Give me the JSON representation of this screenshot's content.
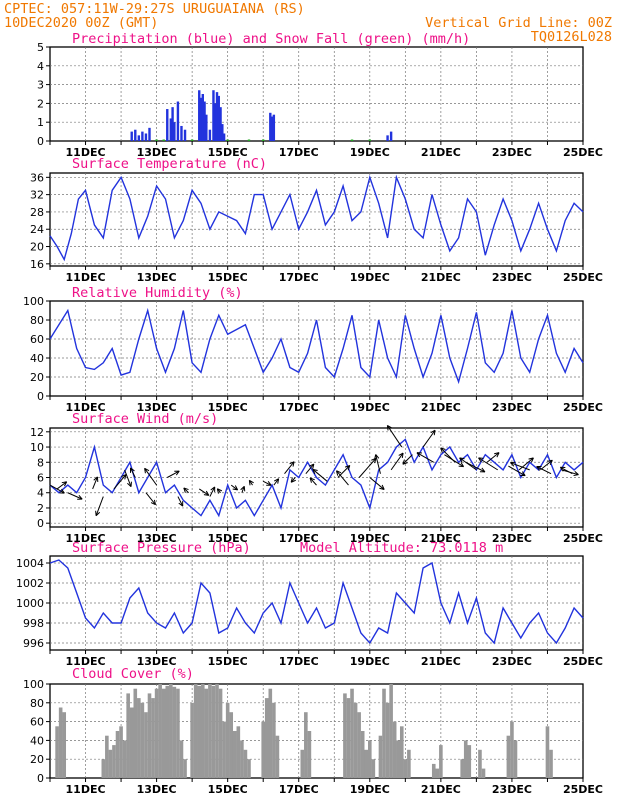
{
  "header": {
    "left1": "CPTEC:  057:11W-29:27S  URUGUAIANA (RS)",
    "left2": "10DEC2020 00Z (GMT)",
    "right1": "Vertical Grid Line: 00Z",
    "right2": "TQ0126L028"
  },
  "x_labels": [
    "11DEC",
    "13DEC",
    "15DEC",
    "17DEC",
    "19DEC",
    "21DEC",
    "23DEC",
    "25DEC"
  ],
  "colors": {
    "line": "#2233dd",
    "snow": "#22aa22",
    "cloud": "#999999",
    "title": "#ee1188",
    "header": "#f07800"
  },
  "chart_data": [
    {
      "type": "bar",
      "title": "Precipitation (blue) and Snow Fall (green) (mm/h)",
      "ylim": [
        0,
        5
      ],
      "yticks": [
        0,
        1,
        2,
        3,
        4,
        5
      ],
      "series": [
        {
          "name": "Precipitation",
          "color": "#2233dd",
          "x": [
            2.3,
            2.4,
            2.5,
            2.6,
            2.7,
            2.8,
            3.3,
            3.4,
            3.45,
            3.5,
            3.6,
            3.7,
            3.8,
            4.2,
            4.25,
            4.3,
            4.35,
            4.4,
            4.5,
            4.6,
            4.65,
            4.7,
            4.75,
            4.8,
            4.85,
            4.9,
            6.2,
            6.25,
            6.3,
            9.5,
            9.6
          ],
          "values": [
            0.5,
            0.6,
            0.3,
            0.5,
            0.4,
            0.7,
            1.7,
            1.2,
            1.8,
            1.0,
            2.1,
            0.8,
            0.6,
            2.7,
            2.3,
            2.5,
            2.1,
            1.4,
            0.6,
            2.7,
            2.0,
            2.6,
            2.4,
            1.8,
            0.9,
            0.4,
            1.5,
            1.3,
            1.4,
            0.3,
            0.5
          ]
        },
        {
          "name": "Snow Fall",
          "color": "#22aa22",
          "x": [
            3.0,
            3.2,
            4.0,
            5.0,
            5.6,
            6.0,
            8.5,
            9.0
          ],
          "values": [
            0.05,
            0.05,
            0.05,
            0.05,
            0.05,
            0.05,
            0.05,
            0.05
          ]
        }
      ]
    },
    {
      "type": "line",
      "title": "Surface Temperature (nC)",
      "ylim": [
        15.5,
        37
      ],
      "yticks": [
        16,
        20,
        24,
        28,
        32,
        36
      ],
      "x": [
        0,
        0.2,
        0.4,
        0.6,
        0.8,
        1.0,
        1.25,
        1.5,
        1.75,
        2.0,
        2.25,
        2.5,
        2.75,
        3.0,
        3.25,
        3.5,
        3.75,
        4.0,
        4.25,
        4.5,
        4.75,
        5.0,
        5.25,
        5.5,
        5.75,
        6.0,
        6.25,
        6.5,
        6.75,
        7.0,
        7.25,
        7.5,
        7.75,
        8.0,
        8.25,
        8.5,
        8.75,
        9.0,
        9.25,
        9.5,
        9.75,
        10.0,
        10.25,
        10.5,
        10.75,
        11.0,
        11.25,
        11.5,
        11.75,
        12.0,
        12.25,
        12.5,
        12.75,
        13.0,
        13.25,
        13.5,
        13.75,
        14.0,
        14.25,
        14.5,
        14.75,
        15.0
      ],
      "y": [
        22.5,
        20,
        17,
        23,
        31,
        33,
        25,
        22,
        33,
        36,
        31,
        22,
        27,
        34,
        31,
        22,
        26,
        33,
        30,
        24,
        28,
        27,
        26,
        23,
        32,
        32,
        24,
        28,
        32,
        24,
        28,
        33,
        25,
        28,
        34,
        26,
        28,
        36,
        30,
        22,
        36,
        31,
        24,
        22,
        32,
        25,
        19,
        22,
        31,
        28,
        18,
        25,
        31,
        26,
        19,
        24,
        30,
        24,
        19,
        26,
        30,
        28
      ]
    },
    {
      "type": "line",
      "title": "Relative Humidity (%)",
      "ylim": [
        0,
        100
      ],
      "yticks": [
        0,
        20,
        40,
        60,
        80,
        100
      ],
      "x": [
        0,
        0.25,
        0.5,
        0.75,
        1.0,
        1.25,
        1.5,
        1.75,
        2.0,
        2.25,
        2.5,
        2.75,
        3.0,
        3.25,
        3.5,
        3.75,
        4.0,
        4.25,
        4.5,
        4.75,
        5.0,
        5.25,
        5.5,
        5.75,
        6.0,
        6.25,
        6.5,
        6.75,
        7.0,
        7.25,
        7.5,
        7.75,
        8.0,
        8.25,
        8.5,
        8.75,
        9.0,
        9.25,
        9.5,
        9.75,
        10.0,
        10.25,
        10.5,
        10.75,
        11.0,
        11.25,
        11.5,
        11.75,
        12.0,
        12.25,
        12.5,
        12.75,
        13.0,
        13.25,
        13.5,
        13.75,
        14.0,
        14.25,
        14.5,
        14.75,
        15.0
      ],
      "y": [
        60,
        75,
        90,
        50,
        30,
        28,
        35,
        50,
        22,
        25,
        60,
        90,
        50,
        25,
        50,
        90,
        35,
        25,
        60,
        85,
        65,
        70,
        75,
        50,
        25,
        40,
        60,
        30,
        25,
        45,
        80,
        30,
        20,
        50,
        85,
        30,
        20,
        80,
        40,
        20,
        85,
        50,
        20,
        45,
        85,
        40,
        15,
        50,
        88,
        35,
        25,
        45,
        90,
        40,
        25,
        60,
        85,
        45,
        25,
        50,
        35
      ]
    },
    {
      "type": "line",
      "title": "Surface Wind (m/s)",
      "ylim": [
        -0.5,
        12.5
      ],
      "yticks": [
        0,
        2,
        4,
        6,
        8,
        10,
        12
      ],
      "x": [
        0,
        0.25,
        0.5,
        0.75,
        1.0,
        1.25,
        1.5,
        1.75,
        2.0,
        2.25,
        2.5,
        2.75,
        3.0,
        3.25,
        3.5,
        3.75,
        4.0,
        4.25,
        4.5,
        4.75,
        5.0,
        5.25,
        5.5,
        5.75,
        6.0,
        6.25,
        6.5,
        6.75,
        7.0,
        7.25,
        7.5,
        7.75,
        8.0,
        8.25,
        8.5,
        8.75,
        9.0,
        9.25,
        9.5,
        9.75,
        10.0,
        10.25,
        10.5,
        10.75,
        11.0,
        11.25,
        11.5,
        11.75,
        12.0,
        12.25,
        12.5,
        12.75,
        13.0,
        13.25,
        13.5,
        13.75,
        14.0,
        14.25,
        14.5,
        14.75,
        15.0
      ],
      "y": [
        5,
        4,
        5,
        4,
        6,
        10,
        5,
        4,
        6,
        8,
        4,
        6,
        8,
        4,
        5,
        3,
        2,
        1,
        3,
        1,
        5,
        2,
        3,
        1,
        3,
        5,
        2,
        7,
        6,
        8,
        6,
        5,
        7,
        9,
        6,
        5,
        2,
        7,
        8,
        10,
        11,
        8,
        10,
        7,
        9,
        10,
        8,
        9,
        7,
        9,
        8,
        7,
        9,
        6,
        8,
        7,
        9,
        6,
        8,
        7,
        8
      ]
    },
    {
      "type": "line",
      "title": "Surface Pressure (hPa)",
      "annotation": "Model Altitude: 73.0118 m",
      "ylim": [
        995.3,
        1004.7
      ],
      "yticks": [
        996,
        998,
        1000,
        1002,
        1004
      ],
      "x": [
        0,
        0.25,
        0.5,
        0.75,
        1.0,
        1.25,
        1.5,
        1.75,
        2.0,
        2.25,
        2.5,
        2.75,
        3.0,
        3.25,
        3.5,
        3.75,
        4.0,
        4.25,
        4.5,
        4.75,
        5.0,
        5.25,
        5.5,
        5.75,
        6.0,
        6.25,
        6.5,
        6.75,
        7.0,
        7.25,
        7.5,
        7.75,
        8.0,
        8.25,
        8.5,
        8.75,
        9.0,
        9.25,
        9.5,
        9.75,
        10.0,
        10.25,
        10.5,
        10.75,
        11.0,
        11.25,
        11.5,
        11.75,
        12.0,
        12.25,
        12.5,
        12.75,
        13.0,
        13.25,
        13.5,
        13.75,
        14.0,
        14.25,
        14.5,
        14.75,
        15.0
      ],
      "y": [
        1004,
        1004.3,
        1003.5,
        1001,
        998.5,
        997.5,
        999,
        998,
        998,
        1000.5,
        1001.5,
        999,
        998,
        997.5,
        999,
        997,
        998,
        1002,
        1001,
        997,
        997.5,
        999.5,
        998,
        997,
        999,
        1000,
        998,
        1002,
        1000,
        998,
        999.5,
        997.5,
        998,
        1002,
        999.5,
        997,
        996,
        997.5,
        997,
        1001,
        1000,
        999,
        1003.5,
        1004,
        1000,
        998,
        1001,
        998,
        1000.5,
        997,
        996,
        999.5,
        998,
        996.5,
        998,
        999,
        997,
        996,
        997.5,
        999.5,
        998.5
      ]
    },
    {
      "type": "bar",
      "title": "Cloud Cover (%)",
      "ylim": [
        0,
        100
      ],
      "yticks": [
        0,
        20,
        40,
        60,
        80,
        100
      ],
      "x": [
        0.2,
        0.3,
        0.4,
        1.5,
        1.6,
        1.7,
        1.8,
        1.9,
        2.0,
        2.1,
        2.2,
        2.3,
        2.4,
        2.5,
        2.6,
        2.7,
        2.8,
        2.9,
        3.0,
        3.1,
        3.2,
        3.3,
        3.4,
        3.5,
        3.6,
        3.7,
        3.8,
        4.0,
        4.1,
        4.2,
        4.3,
        4.4,
        4.5,
        4.6,
        4.7,
        4.8,
        4.9,
        5.0,
        5.1,
        5.2,
        5.3,
        5.4,
        5.5,
        5.6,
        6.0,
        6.1,
        6.2,
        6.3,
        6.4,
        7.1,
        7.2,
        7.3,
        8.3,
        8.4,
        8.5,
        8.6,
        8.7,
        8.8,
        8.9,
        9.0,
        9.1,
        9.3,
        9.4,
        9.5,
        9.6,
        9.7,
        9.8,
        9.9,
        10.0,
        10.1,
        10.8,
        10.9,
        11.0,
        11.6,
        11.7,
        11.8,
        12.1,
        12.2,
        12.9,
        13.0,
        13.1,
        14.0,
        14.1
      ],
      "values": [
        55,
        75,
        70,
        20,
        45,
        30,
        35,
        50,
        55,
        40,
        90,
        75,
        95,
        85,
        80,
        70,
        90,
        85,
        95,
        100,
        95,
        98,
        100,
        97,
        95,
        40,
        20,
        80,
        100,
        98,
        100,
        95,
        100,
        98,
        100,
        95,
        60,
        80,
        70,
        50,
        55,
        40,
        30,
        20,
        60,
        85,
        95,
        80,
        45,
        30,
        70,
        50,
        90,
        85,
        95,
        80,
        70,
        50,
        30,
        40,
        20,
        45,
        95,
        80,
        100,
        60,
        40,
        55,
        20,
        30,
        15,
        10,
        35,
        20,
        40,
        35,
        30,
        10,
        45,
        60,
        40,
        55,
        30
      ]
    }
  ],
  "wind_vectors": {
    "x": [
      0.0,
      0.2,
      0.5,
      1.2,
      1.5,
      1.8,
      2.1,
      2.4,
      2.7,
      3.0,
      3.3,
      3.6,
      3.9,
      4.2,
      4.5,
      4.8,
      5.1,
      5.4,
      5.7,
      6.0,
      6.3,
      6.6,
      6.9,
      7.2,
      7.5,
      7.8,
      8.1,
      8.4,
      8.7,
      9.0,
      9.3,
      9.6,
      9.9,
      10.2,
      10.5,
      10.8,
      11.1,
      11.4,
      11.7,
      12.0,
      12.3,
      12.6,
      12.9,
      13.2,
      13.5,
      13.8,
      14.1,
      14.4,
      14.7
    ],
    "y": [
      5,
      4.5,
      4,
      4.5,
      3.5,
      4.5,
      7,
      6,
      4,
      5,
      6,
      3.5,
      4,
      4.5,
      3.5,
      4,
      5,
      4,
      5,
      5.5,
      5,
      6.5,
      6,
      6.5,
      5,
      5.5,
      6,
      5,
      6,
      6,
      6.5,
      7,
      10,
      9,
      10,
      8,
      9,
      8,
      8,
      7,
      8,
      7,
      7.5,
      7,
      7,
      7,
      6.5,
      7,
      6.5
    ],
    "u": [
      1.8,
      1.2,
      1.8,
      0.6,
      -0.9,
      1.5,
      0.8,
      -0.6,
      1.2,
      -1.5,
      1.5,
      0.6,
      -0.6,
      1.2,
      0.6,
      -0.4,
      0.8,
      0.3,
      -0.4,
      1.0,
      0.6,
      1.2,
      -0.5,
      1.0,
      -0.8,
      -1.8,
      1.5,
      -1.5,
      2.1,
      1.8,
      -0.6,
      1.5,
      -1.8,
      -1.2,
      1.5,
      -2.1,
      2.4,
      -1.8,
      2.4,
      -2.1,
      1.5,
      -2.4,
      2.1,
      1.8,
      -2.4,
      1.5,
      -1.8,
      2.1,
      -1.5
    ],
    "v": [
      -1.0,
      0.9,
      -0.8,
      1.5,
      -2.4,
      1.8,
      -2.1,
      1.2,
      -1.5,
      2.1,
      0.8,
      -1.2,
      0.6,
      -0.8,
      1.2,
      0.5,
      -0.6,
      0.8,
      0.6,
      -0.5,
      0.8,
      1.5,
      -0.6,
      1.2,
      0.9,
      1.5,
      1.5,
      1.8,
      2.4,
      -1.5,
      2.4,
      2.1,
      2.7,
      -1.2,
      2.1,
      1.2,
      -1.5,
      1.8,
      -1.2,
      1.5,
      1.2,
      1.5,
      -1.2,
      1.5,
      0.9,
      1.2,
      0.9,
      -0.6,
      0.8
    ]
  }
}
